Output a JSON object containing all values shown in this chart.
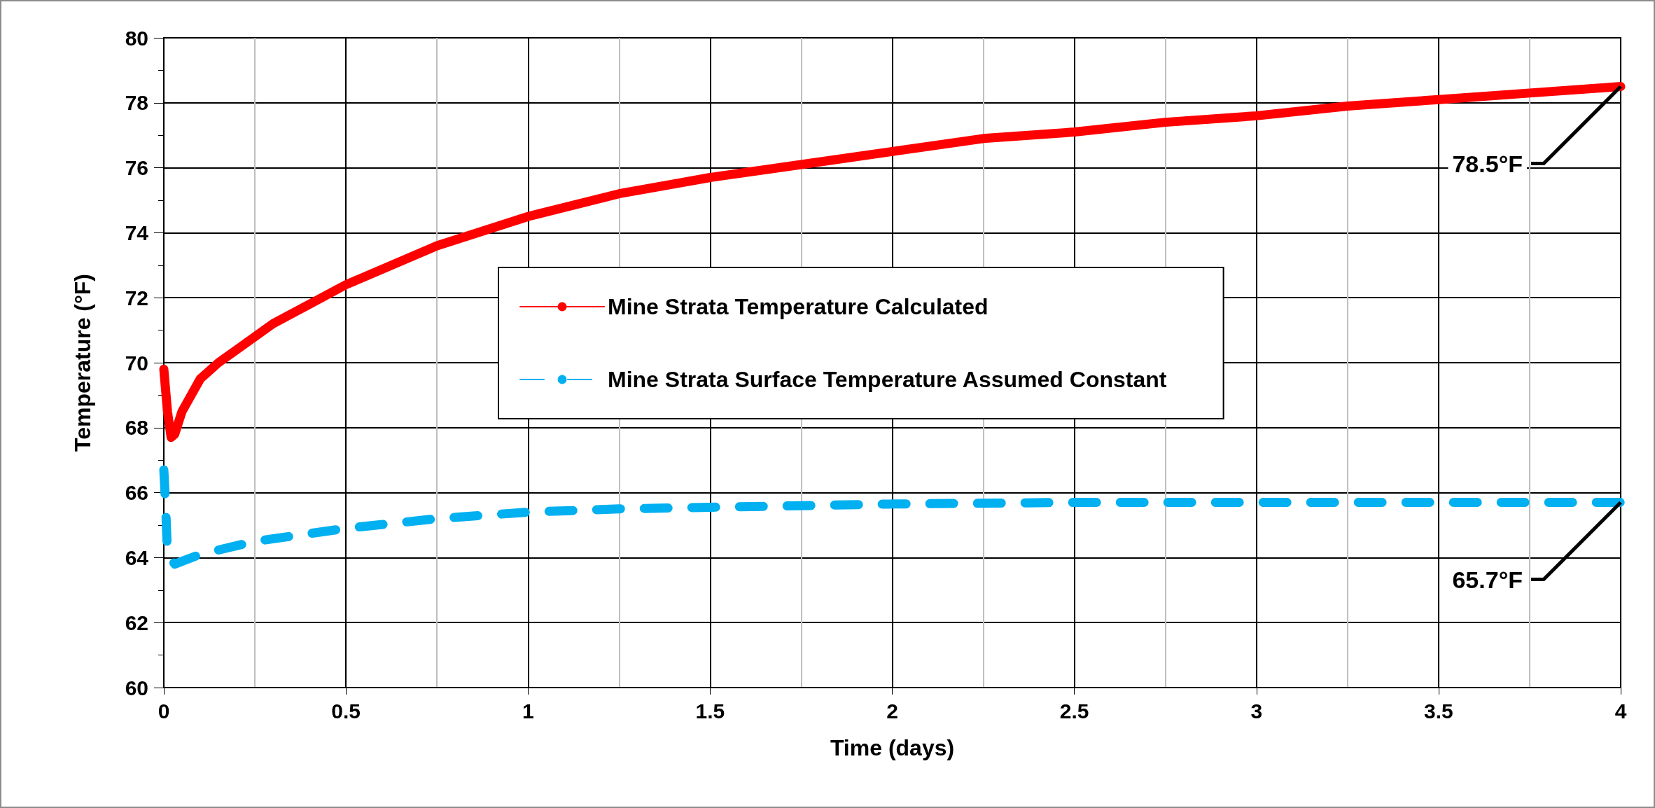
{
  "chart_data": {
    "type": "line",
    "xlabel": "Time (days)",
    "ylabel": "Temperature (°F)",
    "xlim": [
      0,
      4
    ],
    "xticks": [
      0,
      0.5,
      1,
      1.5,
      2,
      2.5,
      3,
      3.5,
      4
    ],
    "ylim": [
      60,
      80
    ],
    "yticks": [
      60,
      62,
      64,
      66,
      68,
      70,
      72,
      74,
      76,
      78,
      80
    ],
    "grid": true,
    "legend": "center",
    "marker": "none",
    "series": [
      {
        "name": "Mine Strata Temperature Calculated",
        "color": "#ff0000",
        "line_style": "solid",
        "x": [
          0,
          0.01,
          0.02,
          0.03,
          0.05,
          0.1,
          0.15,
          0.2,
          0.3,
          0.4,
          0.5,
          0.75,
          1,
          1.25,
          1.5,
          1.75,
          2,
          2.25,
          2.5,
          2.75,
          3,
          3.25,
          3.5,
          3.75,
          4
        ],
        "values": [
          69.8,
          68.5,
          67.7,
          67.8,
          68.5,
          69.5,
          70.0,
          70.4,
          71.2,
          71.8,
          72.4,
          73.6,
          74.5,
          75.2,
          75.7,
          76.1,
          76.5,
          76.9,
          77.1,
          77.4,
          77.6,
          77.9,
          78.1,
          78.3,
          78.5
        ]
      },
      {
        "name": "Mine Strata Surface Temperature Assumed Constant",
        "color": "#00b0f0",
        "line_style": "dashed",
        "x": [
          0,
          0.005,
          0.01,
          0.03,
          0.1,
          0.25,
          0.5,
          0.75,
          1,
          1.25,
          1.5,
          2,
          2.5,
          3,
          3.5,
          4
        ],
        "values": [
          66.7,
          65.6,
          64.1,
          63.8,
          64.1,
          64.5,
          64.9,
          65.2,
          65.4,
          65.5,
          65.55,
          65.65,
          65.7,
          65.7,
          65.7,
          65.7
        ]
      }
    ],
    "annotations": [
      {
        "text": "78.5°F",
        "x": 4,
        "y": 78.5
      },
      {
        "text": "65.7°F",
        "x": 4,
        "y": 65.7
      }
    ]
  }
}
